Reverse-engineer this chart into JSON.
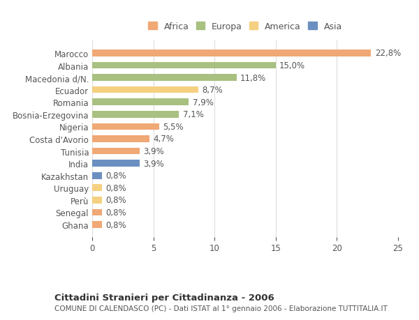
{
  "countries": [
    "Marocco",
    "Albania",
    "Macedonia d/N.",
    "Ecuador",
    "Romania",
    "Bosnia-Erzegovina",
    "Nigeria",
    "Costa d'Avorio",
    "Tunisia",
    "India",
    "Kazakhstan",
    "Uruguay",
    "Perù",
    "Senegal",
    "Ghana"
  ],
  "values": [
    22.8,
    15.0,
    11.8,
    8.7,
    7.9,
    7.1,
    5.5,
    4.7,
    3.9,
    3.9,
    0.8,
    0.8,
    0.8,
    0.8,
    0.8
  ],
  "labels": [
    "22,8%",
    "15,0%",
    "11,8%",
    "8,7%",
    "7,9%",
    "7,1%",
    "5,5%",
    "4,7%",
    "3,9%",
    "3,9%",
    "0,8%",
    "0,8%",
    "0,8%",
    "0,8%",
    "0,8%"
  ],
  "colors": [
    "#F0A875",
    "#A8C080",
    "#A8C080",
    "#F5D080",
    "#A8C080",
    "#A8C080",
    "#F0A875",
    "#F0A875",
    "#F0A875",
    "#6B8FC0",
    "#6B8FC0",
    "#F5D080",
    "#F5D080",
    "#F0A875",
    "#F0A875"
  ],
  "legend": [
    {
      "label": "Africa",
      "color": "#F0A875"
    },
    {
      "label": "Europa",
      "color": "#A8C080"
    },
    {
      "label": "America",
      "color": "#F5D080"
    },
    {
      "label": "Asia",
      "color": "#6B8FC0"
    }
  ],
  "title": "Cittadini Stranieri per Cittadinanza - 2006",
  "subtitle": "COMUNE DI CALENDASCO (PC) - Dati ISTAT al 1° gennaio 2006 - Elaborazione TUTTITALIA.IT",
  "xlim": [
    0,
    25
  ],
  "xticks": [
    0,
    5,
    10,
    15,
    20,
    25
  ],
  "background_color": "#ffffff",
  "bar_height": 0.55,
  "grid_color": "#dddddd",
  "text_color": "#555555",
  "label_fontsize": 8.5,
  "axis_label_fontsize": 8.5
}
